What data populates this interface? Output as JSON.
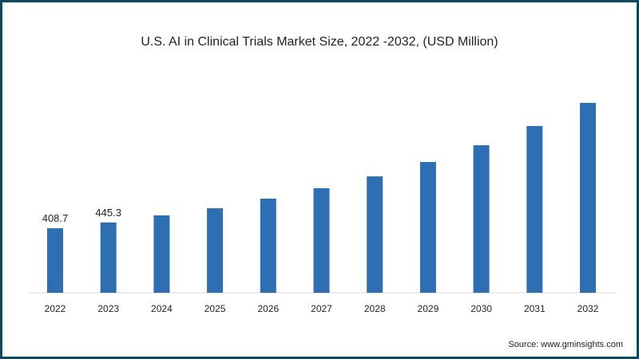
{
  "chart_data": {
    "type": "bar",
    "title": "U.S. AI in Clinical Trials Market Size, 2022 -2032, (USD Million)",
    "xlabel": "",
    "ylabel": "",
    "categories": [
      "2022",
      "2023",
      "2024",
      "2025",
      "2026",
      "2027",
      "2028",
      "2029",
      "2030",
      "2031",
      "2032"
    ],
    "values": [
      408.7,
      445.3,
      490,
      535,
      596,
      662,
      737,
      828,
      934,
      1056,
      1202
    ],
    "data_labels": [
      "408.7",
      "445.3",
      null,
      null,
      null,
      null,
      null,
      null,
      null,
      null,
      null
    ],
    "ylim": [
      0,
      1300
    ],
    "grid": false,
    "bar_color": "#2e6fb4",
    "source": "Source: www.gminsights.com"
  }
}
